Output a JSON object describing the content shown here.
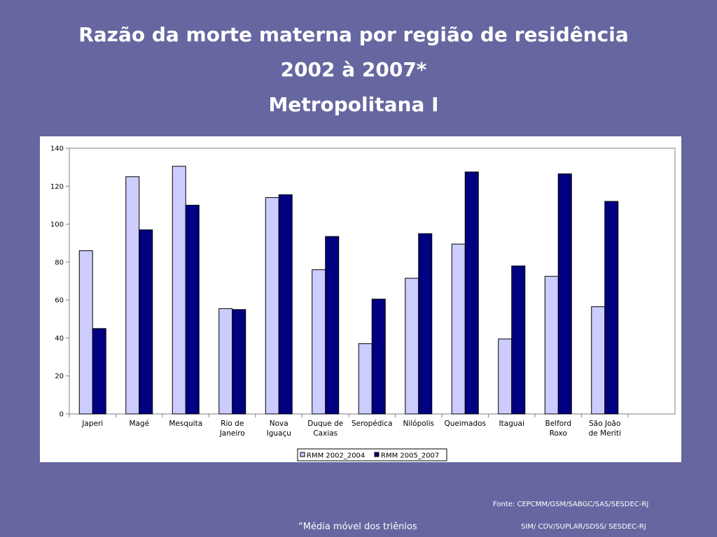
{
  "slide": {
    "title_line1": "Razão da morte materna por região de residência",
    "title_line2": "2002 à 2007*",
    "title_line3": "Metropolitana I",
    "source_line1": "Fonte: CEPCMM/GSM/SABGC/SAS/SESDEC-RJ",
    "source_line2": "SIM/ CDV/SUPLAR/SDSS/ SESDEC-RJ",
    "footnote": "“Média móvel dos triênios"
  },
  "colors": {
    "background": "#6667a0",
    "series1": "#ccccff",
    "series2": "#000080"
  },
  "chart_data": {
    "type": "bar",
    "categories": [
      [
        "Japeri"
      ],
      [
        "Magé"
      ],
      [
        "Mesquita"
      ],
      [
        "Rio de",
        "Janeiro"
      ],
      [
        "Nova",
        "Iguaçu"
      ],
      [
        "Duque de",
        "Caxias"
      ],
      [
        "Seropédica"
      ],
      [
        "Nilópolis"
      ],
      [
        "Queimados"
      ],
      [
        "Itaguai"
      ],
      [
        "Belford",
        "Roxo"
      ],
      [
        "São João",
        "de Meriti"
      ]
    ],
    "series": [
      {
        "name": "RMM 2002_2004",
        "values": [
          86,
          125,
          130.5,
          55.5,
          114,
          76,
          37,
          71.5,
          89.5,
          39.5,
          72.5,
          56.5
        ]
      },
      {
        "name": "RMM 2005_2007",
        "values": [
          45,
          97,
          110,
          55,
          115.5,
          93.5,
          60.5,
          95,
          127.5,
          78,
          126.5,
          112
        ]
      }
    ],
    "ylim": [
      0,
      140
    ],
    "yticks": [
      0,
      20,
      40,
      60,
      80,
      100,
      120,
      140
    ],
    "grid": false,
    "legend": "bottom"
  }
}
